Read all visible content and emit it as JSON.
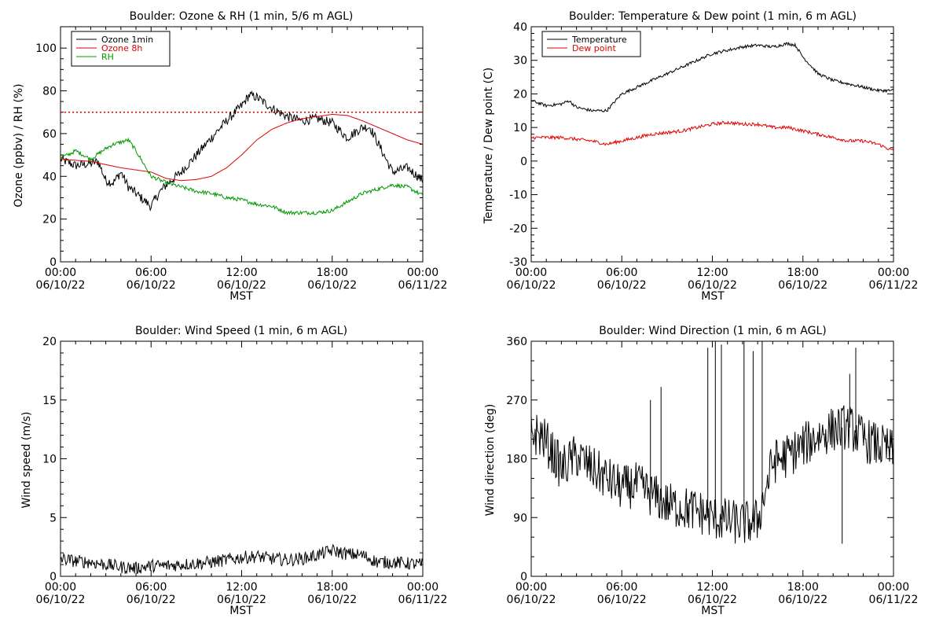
{
  "colors": {
    "black": "#000000",
    "red": "#e00000",
    "green": "#009900"
  },
  "shared": {
    "x_major_ticks": [
      "00:00",
      "06:00",
      "12:00",
      "18:00",
      "00:00"
    ],
    "x_dates": [
      "06/10/22",
      "06/10/22",
      "06/10/22",
      "06/10/22",
      "06/11/22"
    ],
    "xlabel": "MST"
  },
  "chart_data": [
    {
      "id": "ozone",
      "type": "line",
      "title": "Boulder: Ozone & RH (1 min, 5/6 m AGL)",
      "ylabel": "Ozone (ppbv) / RH (%)",
      "xlim": [
        0,
        24
      ],
      "ylim": [
        0,
        110
      ],
      "yticks": [
        0,
        20,
        40,
        60,
        80,
        100
      ],
      "yminor": 4,
      "legend": {
        "placement": "top-left"
      },
      "reference_line": {
        "y": 70,
        "color": "#e00000",
        "style": "dotted"
      },
      "series": [
        {
          "name": "Ozone 1min",
          "color": "#000000",
          "noise": 2.2,
          "points": [
            [
              0,
              48
            ],
            [
              1,
              45
            ],
            [
              2,
              46
            ],
            [
              2.5,
              47
            ],
            [
              3,
              38
            ],
            [
              3.5,
              37
            ],
            [
              4,
              42
            ],
            [
              4.5,
              35
            ],
            [
              5,
              32
            ],
            [
              5.5,
              29
            ],
            [
              6,
              26
            ],
            [
              6.5,
              32
            ],
            [
              7,
              36
            ],
            [
              8,
              42
            ],
            [
              9,
              50
            ],
            [
              10,
              58
            ],
            [
              11,
              66
            ],
            [
              12,
              73
            ],
            [
              12.5,
              78
            ],
            [
              13,
              77
            ],
            [
              14,
              72
            ],
            [
              15,
              68
            ],
            [
              16,
              66
            ],
            [
              17,
              67
            ],
            [
              18,
              65
            ],
            [
              19,
              58
            ],
            [
              20,
              63
            ],
            [
              20.5,
              63
            ],
            [
              21,
              56
            ],
            [
              22,
              42
            ],
            [
              23,
              44
            ],
            [
              24,
              38
            ]
          ]
        },
        {
          "name": "Ozone 8h",
          "color": "#e00000",
          "noise": 0,
          "points": [
            [
              0,
              48
            ],
            [
              2,
              47
            ],
            [
              4,
              44
            ],
            [
              6,
              42
            ],
            [
              7,
              39
            ],
            [
              8,
              38
            ],
            [
              9,
              38.5
            ],
            [
              10,
              40
            ],
            [
              11,
              44
            ],
            [
              12,
              50
            ],
            [
              13,
              57
            ],
            [
              14,
              62
            ],
            [
              15,
              65
            ],
            [
              16,
              67
            ],
            [
              17,
              68
            ],
            [
              18,
              69
            ],
            [
              19,
              68.5
            ],
            [
              20,
              66
            ],
            [
              21,
              63
            ],
            [
              22,
              60
            ],
            [
              23,
              57
            ],
            [
              24,
              55
            ]
          ]
        },
        {
          "name": "RH",
          "color": "#009900",
          "noise": 0.9,
          "points": [
            [
              0,
              49
            ],
            [
              0.5,
              50
            ],
            [
              1,
              52
            ],
            [
              2,
              48
            ],
            [
              3,
              53
            ],
            [
              3.5,
              55
            ],
            [
              4,
              56
            ],
            [
              4.5,
              57
            ],
            [
              5,
              52
            ],
            [
              6,
              40
            ],
            [
              7,
              37
            ],
            [
              8,
              35
            ],
            [
              9,
              33
            ],
            [
              10,
              32
            ],
            [
              11,
              30
            ],
            [
              12,
              29
            ],
            [
              13,
              27
            ],
            [
              14,
              26
            ],
            [
              15,
              23
            ],
            [
              16,
              23
            ],
            [
              17,
              23
            ],
            [
              18,
              24
            ],
            [
              19,
              28
            ],
            [
              20,
              32
            ],
            [
              21,
              34
            ],
            [
              22,
              36
            ],
            [
              23,
              35
            ],
            [
              24,
              31
            ]
          ]
        }
      ]
    },
    {
      "id": "temp",
      "type": "line",
      "title": "Boulder: Temperature & Dew point (1 min, 6 m AGL)",
      "ylabel": "Temperature / Dew point (C)",
      "xlim": [
        0,
        24
      ],
      "ylim": [
        -30,
        40
      ],
      "yticks": [
        -30,
        -20,
        -10,
        0,
        10,
        20,
        30,
        40
      ],
      "yminor": 5,
      "legend": {
        "placement": "top-left"
      },
      "series": [
        {
          "name": "Temperature",
          "color": "#000000",
          "noise": 0.45,
          "points": [
            [
              0,
              18
            ],
            [
              1,
              16.5
            ],
            [
              2,
              17
            ],
            [
              2.5,
              18
            ],
            [
              3,
              16
            ],
            [
              4,
              15
            ],
            [
              5,
              15
            ],
            [
              6,
              20
            ],
            [
              7,
              22
            ],
            [
              8,
              24
            ],
            [
              9,
              26
            ],
            [
              10,
              28
            ],
            [
              11,
              30
            ],
            [
              12,
              32
            ],
            [
              13,
              33
            ],
            [
              14,
              34
            ],
            [
              15,
              34.5
            ],
            [
              16,
              34
            ],
            [
              17,
              35
            ],
            [
              17.5,
              34.5
            ],
            [
              18,
              31
            ],
            [
              19,
              26
            ],
            [
              20,
              24
            ],
            [
              21,
              23
            ],
            [
              22,
              22
            ],
            [
              23,
              21
            ],
            [
              24,
              21
            ]
          ]
        },
        {
          "name": "Dew point",
          "color": "#e00000",
          "noise": 0.5,
          "points": [
            [
              0,
              7
            ],
            [
              2,
              7
            ],
            [
              4,
              6
            ],
            [
              5,
              5
            ],
            [
              6,
              6
            ],
            [
              7,
              7
            ],
            [
              8,
              8
            ],
            [
              9,
              8.5
            ],
            [
              10,
              9
            ],
            [
              11,
              10
            ],
            [
              12,
              11
            ],
            [
              13,
              11.5
            ],
            [
              14,
              11
            ],
            [
              15,
              11
            ],
            [
              16,
              10
            ],
            [
              17,
              10
            ],
            [
              18,
              9
            ],
            [
              19,
              8
            ],
            [
              20,
              7
            ],
            [
              21,
              6
            ],
            [
              22,
              6
            ],
            [
              23,
              5
            ],
            [
              24,
              3
            ]
          ]
        }
      ]
    },
    {
      "id": "windspeed",
      "type": "line",
      "title": "Boulder: Wind Speed (1 min, 6 m AGL)",
      "ylabel": "Wind speed (m/s)",
      "xlim": [
        0,
        24
      ],
      "ylim": [
        0,
        20
      ],
      "yticks": [
        0,
        5,
        10,
        15,
        20
      ],
      "yminor": 5,
      "series": [
        {
          "name": "",
          "color": "#000000",
          "noise": 0.55,
          "points": [
            [
              0,
              1.5
            ],
            [
              1,
              1.3
            ],
            [
              2,
              1.2
            ],
            [
              3,
              1.0
            ],
            [
              4,
              0.8
            ],
            [
              5,
              0.7
            ],
            [
              6,
              0.9
            ],
            [
              7,
              0.9
            ],
            [
              8,
              1.0
            ],
            [
              9,
              1.1
            ],
            [
              10,
              1.2
            ],
            [
              11,
              1.4
            ],
            [
              12,
              1.6
            ],
            [
              13,
              1.7
            ],
            [
              14,
              1.5
            ],
            [
              15,
              1.4
            ],
            [
              16,
              1.5
            ],
            [
              17,
              1.8
            ],
            [
              18,
              2.2
            ],
            [
              19,
              1.9
            ],
            [
              20,
              1.8
            ],
            [
              21,
              1.2
            ],
            [
              22,
              1.2
            ],
            [
              23,
              1.1
            ],
            [
              24,
              1.0
            ]
          ]
        }
      ]
    },
    {
      "id": "winddir",
      "type": "line",
      "title": "Boulder: Wind Direction (1 min, 6 m AGL)",
      "ylabel": "Wind direction (deg)",
      "xlim": [
        0,
        24
      ],
      "ylim": [
        0,
        360
      ],
      "yticks": [
        0,
        90,
        180,
        270,
        360
      ],
      "yminor": 3,
      "series": [
        {
          "name": "",
          "color": "#000000",
          "noise": 35,
          "points": [
            [
              0,
              220
            ],
            [
              0.7,
              215
            ],
            [
              1,
              205
            ],
            [
              2,
              165
            ],
            [
              3,
              185
            ],
            [
              4,
              165
            ],
            [
              5,
              150
            ],
            [
              6,
              135
            ],
            [
              7,
              140
            ],
            [
              8,
              125
            ],
            [
              9,
              110
            ],
            [
              10,
              105
            ],
            [
              11,
              100
            ],
            [
              12,
              90
            ],
            [
              13,
              85
            ],
            [
              14,
              80
            ],
            [
              15,
              85
            ],
            [
              16,
              175
            ],
            [
              17,
              185
            ],
            [
              18,
              200
            ],
            [
              19,
              215
            ],
            [
              20,
              225
            ],
            [
              21,
              230
            ],
            [
              22,
              210
            ],
            [
              23,
              200
            ],
            [
              24,
              190
            ]
          ]
        },
        {
          "name": "",
          "color": "#000000",
          "noise": 0,
          "spikes": true,
          "points": [
            [
              7.9,
              270
            ],
            [
              8.6,
              290
            ],
            [
              11.7,
              350
            ],
            [
              12.2,
              360
            ],
            [
              12.6,
              355
            ],
            [
              14.1,
              360
            ],
            [
              14.7,
              345
            ],
            [
              15.3,
              360
            ],
            [
              21.1,
              310
            ],
            [
              21.5,
              350
            ],
            [
              20.6,
              50
            ]
          ]
        }
      ]
    }
  ]
}
